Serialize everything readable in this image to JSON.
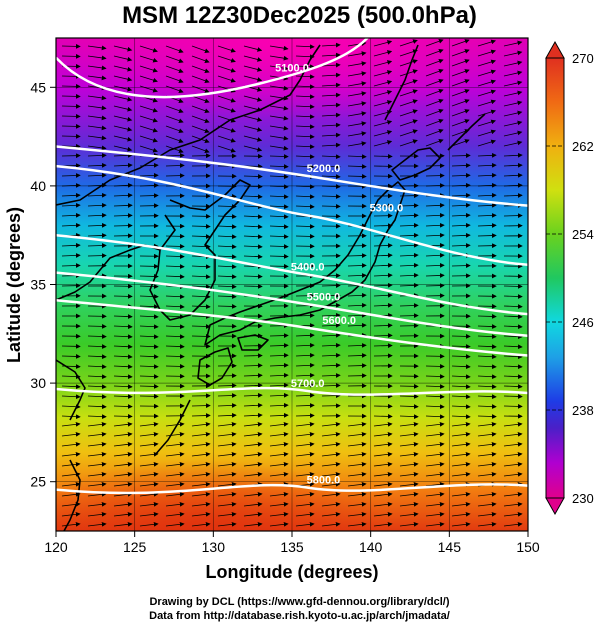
{
  "title": "MSM 12Z30Dec2025 (500.0hPa)",
  "x_axis": {
    "label": "Longitude (degrees)",
    "range": [
      120,
      150
    ],
    "ticks": [
      120,
      125,
      130,
      135,
      140,
      145,
      150
    ]
  },
  "y_axis": {
    "label": "Latitude  (degrees)",
    "range": [
      22.5,
      47.5
    ],
    "ticks": [
      25,
      30,
      35,
      40,
      45
    ]
  },
  "colorbar": {
    "range": [
      230,
      270
    ],
    "ticks": [
      230,
      238,
      246,
      254,
      262,
      270
    ]
  },
  "contours": [
    {
      "label": "5100.0",
      "lat_west": 49.0,
      "lat_east": 49.0
    },
    {
      "label": "5200.0",
      "lat_west": 42.0,
      "lat_east": 39.0
    },
    {
      "label": "5300.0",
      "lat_west": 41.0,
      "lat_east": 36.0
    },
    {
      "label": "5400.0",
      "lat_west": 37.5,
      "lat_east": 33.5
    },
    {
      "label": "5500.0",
      "lat_west": 35.6,
      "lat_east": 32.4
    },
    {
      "label": "5600.0",
      "lat_west": 34.2,
      "lat_east": 31.4
    },
    {
      "label": "5700.0",
      "lat_west": 29.7,
      "lat_east": 29.5
    },
    {
      "label": "5800.0",
      "lat_west": 24.6,
      "lat_east": 24.8
    }
  ],
  "credits": [
    "Drawing by DCL (https://www.gfd-dennou.org/library/dcl/)",
    "Data from http://database.rish.kyoto-u.ac.jp/arch/jmadata/"
  ],
  "colors": {
    "contour": "#ffffff",
    "coast": "#000000",
    "vector": "#000000"
  }
}
